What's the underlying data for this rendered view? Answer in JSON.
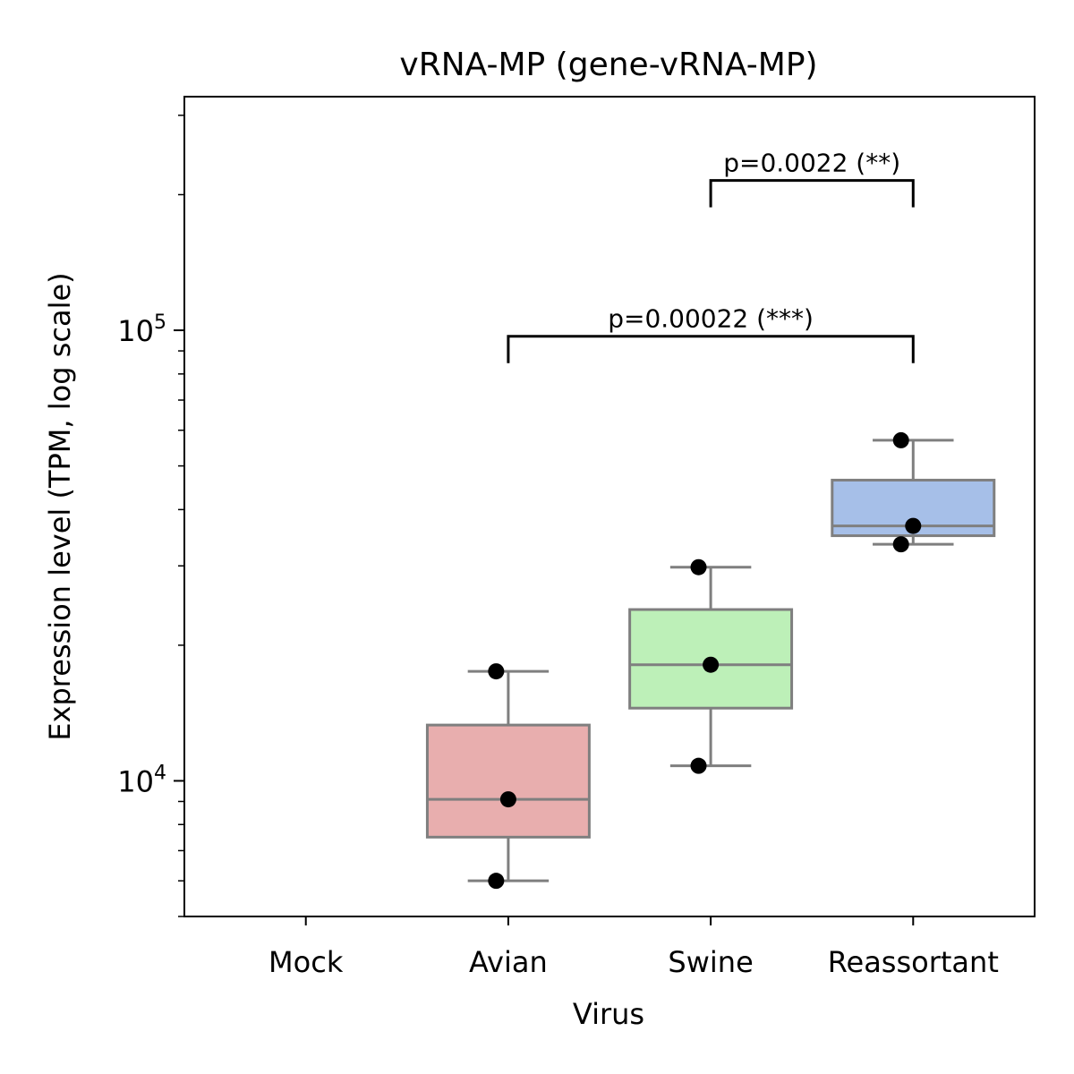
{
  "chart_data": {
    "type": "box",
    "title": "vRNA-MP (gene-vRNA-MP)",
    "xlabel": "Virus",
    "ylabel": "Expression level (TPM, log scale)",
    "yscale": "log",
    "ylim": [
      5000,
      330000
    ],
    "y_tick_labels": [
      {
        "base": "10",
        "exp": "4",
        "value": 10000
      },
      {
        "base": "10",
        "exp": "5",
        "value": 100000
      }
    ],
    "categories": [
      "Mock",
      "Avian",
      "Swine",
      "Reassortant"
    ],
    "boxes": [
      {
        "category": "Mock",
        "color": "#e8aeae",
        "stats": null,
        "points": []
      },
      {
        "category": "Avian",
        "color": "#e8aeae",
        "stats": {
          "whislo": 6000,
          "q1": 7500,
          "med": 9100,
          "q3": 13300,
          "whishi": 17500
        },
        "points": [
          17500,
          9100,
          6000
        ]
      },
      {
        "category": "Swine",
        "color": "#bdf0b8",
        "stats": {
          "whislo": 10800,
          "q1": 14500,
          "med": 18100,
          "q3": 24000,
          "whishi": 29800
        },
        "points": [
          29800,
          18100,
          10800
        ]
      },
      {
        "category": "Reassortant",
        "color": "#a6bfe8",
        "stats": {
          "whislo": 33500,
          "q1": 35000,
          "med": 36800,
          "q3": 46500,
          "whishi": 57000
        },
        "points": [
          57000,
          36800,
          33500
        ]
      }
    ],
    "annotations": [
      {
        "from": "Avian",
        "to": "Reassortant",
        "text": "p=0.00022 (***)",
        "y": 97000
      },
      {
        "from": "Swine",
        "to": "Reassortant",
        "text": "p=0.0022 (**)",
        "y": 215000
      }
    ],
    "grid": false,
    "legend": "none"
  }
}
